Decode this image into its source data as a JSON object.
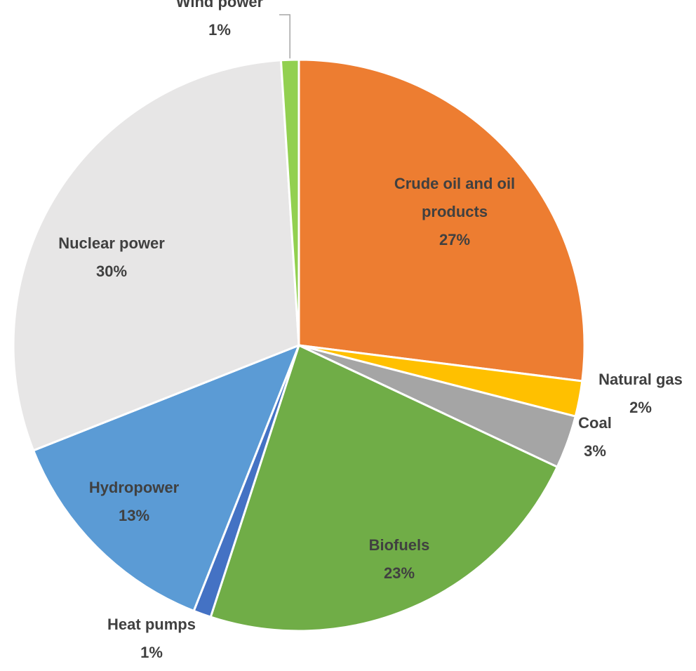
{
  "chart_data": {
    "type": "pie",
    "title": "",
    "start_angle_deg": 0,
    "direction": "clockwise",
    "slices": [
      {
        "label": "Crude oil and oil products",
        "label_lines": [
          "Crude oil and oil",
          "products"
        ],
        "value": 27,
        "value_label": "27%",
        "color": "#ED7D31",
        "label_position": "inside"
      },
      {
        "label": "Natural gas",
        "label_lines": [
          "Natural gas"
        ],
        "value": 2,
        "value_label": "2%",
        "color": "#FFC000",
        "label_position": "outside"
      },
      {
        "label": "Coal",
        "label_lines": [
          "Coal"
        ],
        "value": 3,
        "value_label": "3%",
        "color": "#A5A5A5",
        "label_position": "outside"
      },
      {
        "label": "Biofuels",
        "label_lines": [
          "Biofuels"
        ],
        "value": 23,
        "value_label": "23%",
        "color": "#70AD47",
        "label_position": "inside"
      },
      {
        "label": "Heat pumps",
        "label_lines": [
          "Heat pumps"
        ],
        "value": 1,
        "value_label": "1%",
        "color": "#4472C4",
        "label_position": "outside"
      },
      {
        "label": "Hydropower",
        "label_lines": [
          "Hydropower"
        ],
        "value": 13,
        "value_label": "13%",
        "color": "#5B9BD5",
        "label_position": "inside"
      },
      {
        "label": "Nuclear power",
        "label_lines": [
          "Nuclear power"
        ],
        "value": 30,
        "value_label": "30%",
        "color": "#E7E6E6",
        "label_position": "inside"
      },
      {
        "label": "Wind power",
        "label_lines": [
          "Wind power"
        ],
        "value": 1,
        "value_label": "1%",
        "color": "#92D050",
        "label_position": "outside",
        "leader_line": true
      }
    ],
    "legend": "none",
    "label_color": "#404040"
  }
}
